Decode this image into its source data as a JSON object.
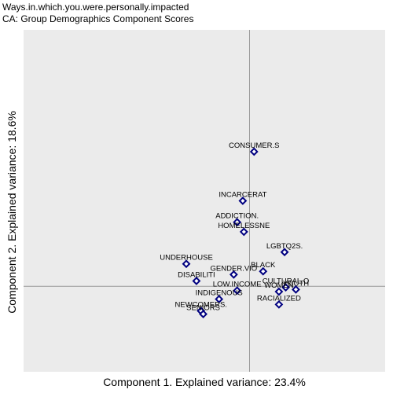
{
  "title_line1": "Ways.in.which.you.were.personally.impacted",
  "title_line2": "CA: Group Demographics Component Scores",
  "colors": {
    "panel": "#ebebeb",
    "axis_line": "#999999",
    "point": "#000080"
  },
  "chart_data": {
    "type": "scatter",
    "xlabel": "Component 1. Explained variance: 23.4%",
    "ylabel": "Component 2. Explained variance: 18.6%",
    "xlim": [
      -2.0,
      1.2
    ],
    "ylim": [
      -0.8,
      2.4
    ],
    "grid": false,
    "reference_lines": {
      "x": 0,
      "y": 0
    },
    "points": [
      {
        "label": "CONSUMER.S",
        "x": 0.04,
        "y": 1.26
      },
      {
        "label": "INCARCERAT",
        "x": -0.06,
        "y": 0.8
      },
      {
        "label": "ADDICTION.",
        "x": -0.11,
        "y": 0.6
      },
      {
        "label": "HOMELESSNE",
        "x": -0.05,
        "y": 0.51
      },
      {
        "label": "LGBTQ2S.",
        "x": 0.31,
        "y": 0.32
      },
      {
        "label": "UNDERHOUSE",
        "x": -0.56,
        "y": 0.21
      },
      {
        "label": "BLACK",
        "x": 0.12,
        "y": 0.14
      },
      {
        "label": "GENDER.VIO",
        "x": -0.14,
        "y": 0.11
      },
      {
        "label": "DISABILITI",
        "x": -0.47,
        "y": 0.05
      },
      {
        "label": "CULTURAL.O",
        "x": 0.32,
        "y": -0.01
      },
      {
        "label": "YOUTH",
        "x": 0.41,
        "y": -0.03
      },
      {
        "label": "WOMEN",
        "x": 0.26,
        "y": -0.05
      },
      {
        "label": "LOW.INCOME",
        "x": -0.11,
        "y": -0.04
      },
      {
        "label": "INDIGENOUS",
        "x": -0.27,
        "y": -0.12
      },
      {
        "label": "RACIALIZED",
        "x": 0.26,
        "y": -0.17
      },
      {
        "label": "NEWCOMERS.",
        "x": -0.43,
        "y": -0.23
      },
      {
        "label": "SENIORS",
        "x": -0.41,
        "y": -0.26
      }
    ]
  }
}
